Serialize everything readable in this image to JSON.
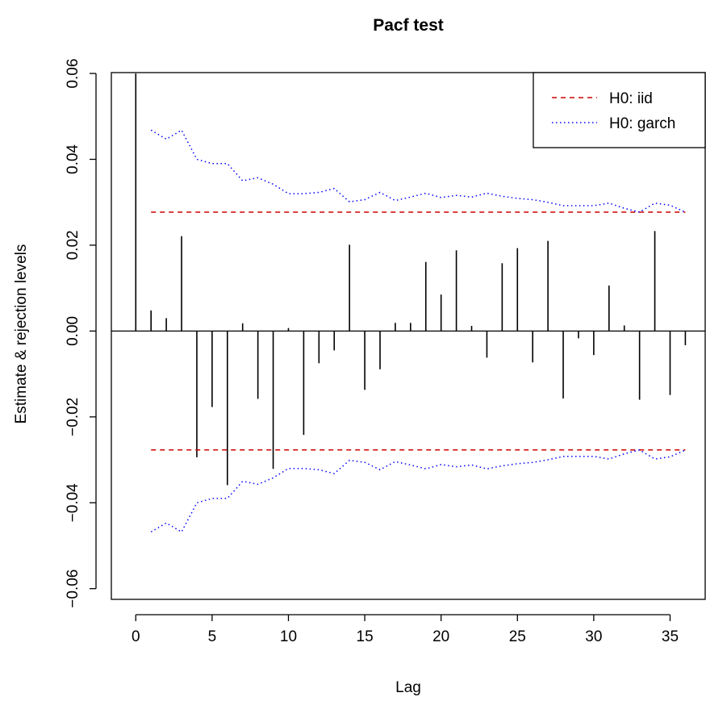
{
  "chart_data": {
    "type": "bar",
    "title": "Pacf test",
    "xlabel": "Lag",
    "ylabel": "Estimate & rejection levels",
    "xlim": [
      -1.6,
      37.3
    ],
    "ylim": [
      -0.0625,
      0.0602
    ],
    "x_ticks": [
      0,
      5,
      10,
      15,
      20,
      25,
      30,
      35
    ],
    "x_tick_labels": [
      "0",
      "5",
      "10",
      "15",
      "20",
      "25",
      "30",
      "35"
    ],
    "y_ticks": [
      -0.06,
      -0.04,
      -0.02,
      0.0,
      0.02,
      0.04,
      0.06
    ],
    "y_tick_labels": [
      "−0.06",
      "−0.04",
      "−0.02",
      "0.00",
      "0.02",
      "0.04",
      "0.06"
    ],
    "legend_position": "top-right",
    "lags": [
      0,
      1,
      2,
      3,
      4,
      5,
      6,
      7,
      8,
      9,
      10,
      11,
      12,
      13,
      14,
      15,
      16,
      17,
      18,
      19,
      20,
      21,
      22,
      23,
      24,
      25,
      26,
      27,
      28,
      29,
      30,
      31,
      32,
      33,
      34,
      35,
      36
    ],
    "values": [
      0.06,
      0.0048,
      0.003,
      0.0221,
      -0.0294,
      -0.0177,
      -0.0359,
      0.0018,
      -0.0158,
      -0.0321,
      0.0007,
      -0.0242,
      -0.0075,
      -0.0045,
      0.0201,
      -0.0137,
      -0.0089,
      0.0019,
      0.0019,
      0.0161,
      0.0085,
      0.0188,
      0.0012,
      -0.0062,
      0.0158,
      0.0193,
      -0.0073,
      0.021,
      -0.0157,
      -0.0017,
      -0.0056,
      0.0106,
      0.0013,
      -0.016,
      0.0233,
      -0.0149,
      -0.0033
    ],
    "series": [
      {
        "name": "H0: iid",
        "style": "dashed",
        "color": "#cd0000",
        "x": [
          1,
          36
        ],
        "upper": [
          0.0277,
          0.0277
        ],
        "lower": [
          -0.0277,
          -0.0277
        ]
      },
      {
        "name": "H0: garch",
        "style": "dotted",
        "color": "#0000ff",
        "x": [
          1,
          2,
          3,
          4,
          5,
          6,
          7,
          8,
          9,
          10,
          11,
          12,
          13,
          14,
          15,
          16,
          17,
          18,
          19,
          20,
          21,
          22,
          23,
          24,
          25,
          26,
          27,
          28,
          29,
          30,
          31,
          32,
          33,
          34,
          35,
          36
        ],
        "upper": [
          0.0468,
          0.0447,
          0.0468,
          0.04,
          0.039,
          0.039,
          0.035,
          0.0357,
          0.0342,
          0.032,
          0.032,
          0.0323,
          0.0332,
          0.0301,
          0.0306,
          0.0323,
          0.0304,
          0.0312,
          0.0321,
          0.0311,
          0.0316,
          0.0312,
          0.0321,
          0.0314,
          0.0309,
          0.0306,
          0.03,
          0.0292,
          0.0292,
          0.0292,
          0.0298,
          0.0286,
          0.0277,
          0.0298,
          0.0293,
          0.0277
        ],
        "lower": [
          -0.0468,
          -0.0447,
          -0.0468,
          -0.04,
          -0.039,
          -0.039,
          -0.035,
          -0.0357,
          -0.0342,
          -0.032,
          -0.032,
          -0.0323,
          -0.0332,
          -0.0301,
          -0.0306,
          -0.0323,
          -0.0304,
          -0.0312,
          -0.0321,
          -0.0311,
          -0.0316,
          -0.0312,
          -0.0321,
          -0.0314,
          -0.0309,
          -0.0306,
          -0.03,
          -0.0292,
          -0.0292,
          -0.0292,
          -0.0298,
          -0.0286,
          -0.0277,
          -0.0298,
          -0.0293,
          -0.0277
        ]
      }
    ]
  }
}
